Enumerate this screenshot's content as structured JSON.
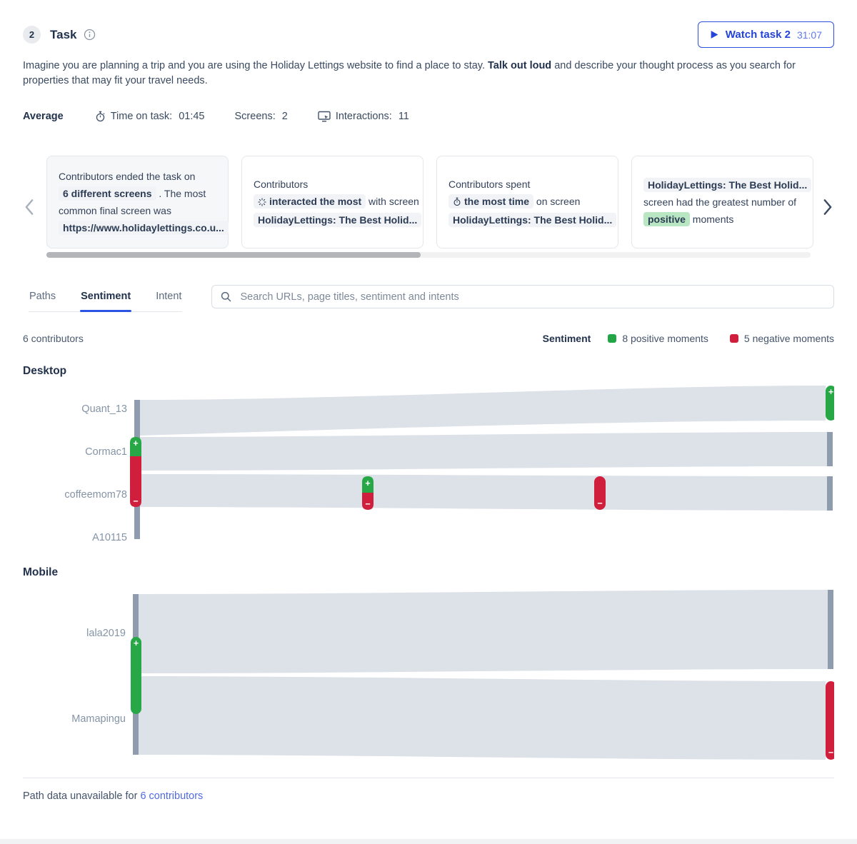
{
  "header": {
    "badge": "2",
    "title": "Task",
    "watch_label": "Watch task 2",
    "watch_time": "31:07"
  },
  "task_description": {
    "part1": "Imagine you are planning a trip and you are using the Holiday Lettings website to find a place to stay. ",
    "bold": "Talk out loud",
    "part2": " and describe your thought process as you search for properties that may fit your travel needs."
  },
  "stats": {
    "average_label": "Average",
    "time_label": "Time on task:",
    "time_value": "01:45",
    "screens_label": "Screens:",
    "screens_value": "2",
    "interactions_label": "Interactions:",
    "interactions_value": "11"
  },
  "insight_cards": [
    {
      "highlighted": true,
      "segments": [
        {
          "text": "Contributors ended the task on "
        },
        {
          "text": "6 different screens",
          "chip": "gray"
        },
        {
          "text": " . The most common final screen was "
        },
        {
          "text": "https://www.holidaylettings.co.u...",
          "chip": "gray"
        }
      ]
    },
    {
      "highlighted": false,
      "segments": [
        {
          "text": "Contributors "
        },
        {
          "text": "interacted the most",
          "chip": "gray",
          "icon": "click-icon"
        },
        {
          "text": " with screen "
        },
        {
          "text": "HolidayLettings: The Best Holid...",
          "chip": "gray"
        }
      ]
    },
    {
      "highlighted": false,
      "segments": [
        {
          "text": "Contributors spent "
        },
        {
          "text": "the most time",
          "chip": "gray",
          "icon": "stopwatch-icon"
        },
        {
          "text": " on screen "
        },
        {
          "text": "HolidayLettings: The Best Holid...",
          "chip": "gray"
        }
      ]
    },
    {
      "highlighted": false,
      "segments": [
        {
          "text": "HolidayLettings: The Best Holid...",
          "chip": "gray"
        },
        {
          "text": " screen had the greatest number of "
        },
        {
          "text": "positive",
          "chip": "green"
        },
        {
          "text": " moments"
        }
      ]
    }
  ],
  "tabs": [
    {
      "label": "Paths",
      "active": false
    },
    {
      "label": "Sentiment",
      "active": true
    },
    {
      "label": "Intent",
      "active": false
    }
  ],
  "search": {
    "placeholder": "Search URLs, page titles, sentiment and intents"
  },
  "results": {
    "contributors": "6 contributors",
    "legend_title": "Sentiment",
    "legend_positive": "8 positive moments",
    "legend_negative": "5 negative moments"
  },
  "sections": {
    "desktop": {
      "title": "Desktop",
      "rows": [
        {
          "label": "Quant_13"
        },
        {
          "label": "Cormac1"
        },
        {
          "label": "coffeemom78"
        },
        {
          "label": "A10115"
        }
      ]
    },
    "mobile": {
      "title": "Mobile",
      "rows": [
        {
          "label": "lala2019"
        },
        {
          "label": "Mamapingu"
        }
      ]
    }
  },
  "footer": {
    "text": "Path data unavailable for ",
    "link": "6 contributors"
  },
  "colors": {
    "accent_blue": "#2b50e2",
    "positive_green": "#27a746",
    "negative_red": "#cf1f3d",
    "flow_gray": "#dde1e8",
    "node_gray": "#8e9cae",
    "positive_chip_bg": "#b9e6c3"
  }
}
